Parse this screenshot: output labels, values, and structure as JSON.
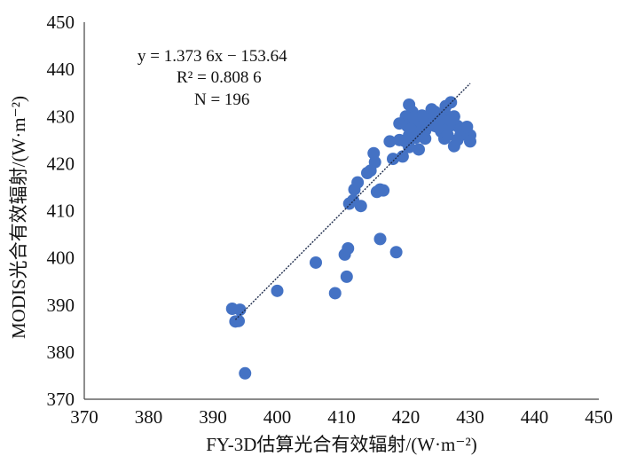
{
  "chart_data": {
    "type": "scatter",
    "xlabel": "FY-3D估算光合有效辐射/(W·m⁻²)",
    "ylabel": "MODIS光合有效辐射/(W·m⁻²)",
    "xlim": [
      370,
      450
    ],
    "ylim": [
      370,
      450
    ],
    "x_ticks": [
      "370",
      "380",
      "390",
      "400",
      "410",
      "420",
      "430",
      "440",
      "450"
    ],
    "y_ticks": [
      "370",
      "380",
      "390",
      "400",
      "410",
      "420",
      "430",
      "440",
      "450"
    ],
    "grid": false,
    "legend": "none",
    "point_color": "#4472C4",
    "trendline_color": "#1F2D4D",
    "annotations": {
      "equation": "y = 1.373 6x − 153.64",
      "r_squared": "R² = 0.808 6",
      "n": "N = 196"
    },
    "trendline": {
      "slope": 1.3736,
      "intercept": -153.64,
      "x_range": [
        393.5,
        430
      ]
    },
    "points": [
      [
        393,
        389.2
      ],
      [
        393.5,
        386.5
      ],
      [
        394.2,
        389
      ],
      [
        394,
        386.6
      ],
      [
        395,
        375.5
      ],
      [
        400,
        393
      ],
      [
        406,
        399
      ],
      [
        409,
        392.5
      ],
      [
        410.5,
        400.7
      ],
      [
        410.8,
        396
      ],
      [
        411,
        402
      ],
      [
        411.2,
        411.5
      ],
      [
        411.8,
        412.2
      ],
      [
        412,
        414.5
      ],
      [
        412.5,
        416
      ],
      [
        413,
        411
      ],
      [
        414,
        418
      ],
      [
        414.5,
        418.5
      ],
      [
        415,
        422.2
      ],
      [
        415.2,
        420.3
      ],
      [
        415.5,
        414
      ],
      [
        416,
        414.5
      ],
      [
        416.5,
        414.3
      ],
      [
        416,
        404
      ],
      [
        418.5,
        401.2
      ],
      [
        417.5,
        424.7
      ],
      [
        418,
        421
      ],
      [
        419,
        425
      ],
      [
        419.5,
        421.5
      ],
      [
        420,
        430
      ],
      [
        420.2,
        428
      ],
      [
        420.5,
        432.5
      ],
      [
        420.5,
        426
      ],
      [
        421,
        431
      ],
      [
        421,
        427.5
      ],
      [
        421.5,
        429
      ],
      [
        422,
        423
      ],
      [
        422.5,
        428.5
      ],
      [
        423,
        427
      ],
      [
        423.5,
        430
      ],
      [
        424,
        431.5
      ],
      [
        424.5,
        428
      ],
      [
        425,
        430.5
      ],
      [
        425.5,
        426.8
      ],
      [
        426,
        431
      ],
      [
        426.5,
        427.5
      ],
      [
        427,
        433
      ],
      [
        427.5,
        430
      ],
      [
        428,
        428
      ],
      [
        428.5,
        426
      ],
      [
        427.5,
        423.7
      ],
      [
        429,
        427.5
      ],
      [
        430,
        426
      ],
      [
        430,
        424.7
      ],
      [
        426,
        425.3
      ],
      [
        424,
        429.5
      ],
      [
        425,
        427.7
      ],
      [
        422,
        426.5
      ],
      [
        420.5,
        423.5
      ],
      [
        419,
        428.5
      ],
      [
        421.5,
        425.5
      ],
      [
        423,
        425.3
      ],
      [
        425.5,
        429.5
      ],
      [
        427,
        429.2
      ],
      [
        428.5,
        427.2
      ],
      [
        429.5,
        427.8
      ],
      [
        423.5,
        428.3
      ],
      [
        422.5,
        430.2
      ],
      [
        421.2,
        429.8
      ],
      [
        420.8,
        427.2
      ],
      [
        426.5,
        426
      ],
      [
        428,
        425
      ],
      [
        424.5,
        431
      ],
      [
        426.2,
        432.2
      ],
      [
        419.8,
        424.8
      ]
    ]
  }
}
